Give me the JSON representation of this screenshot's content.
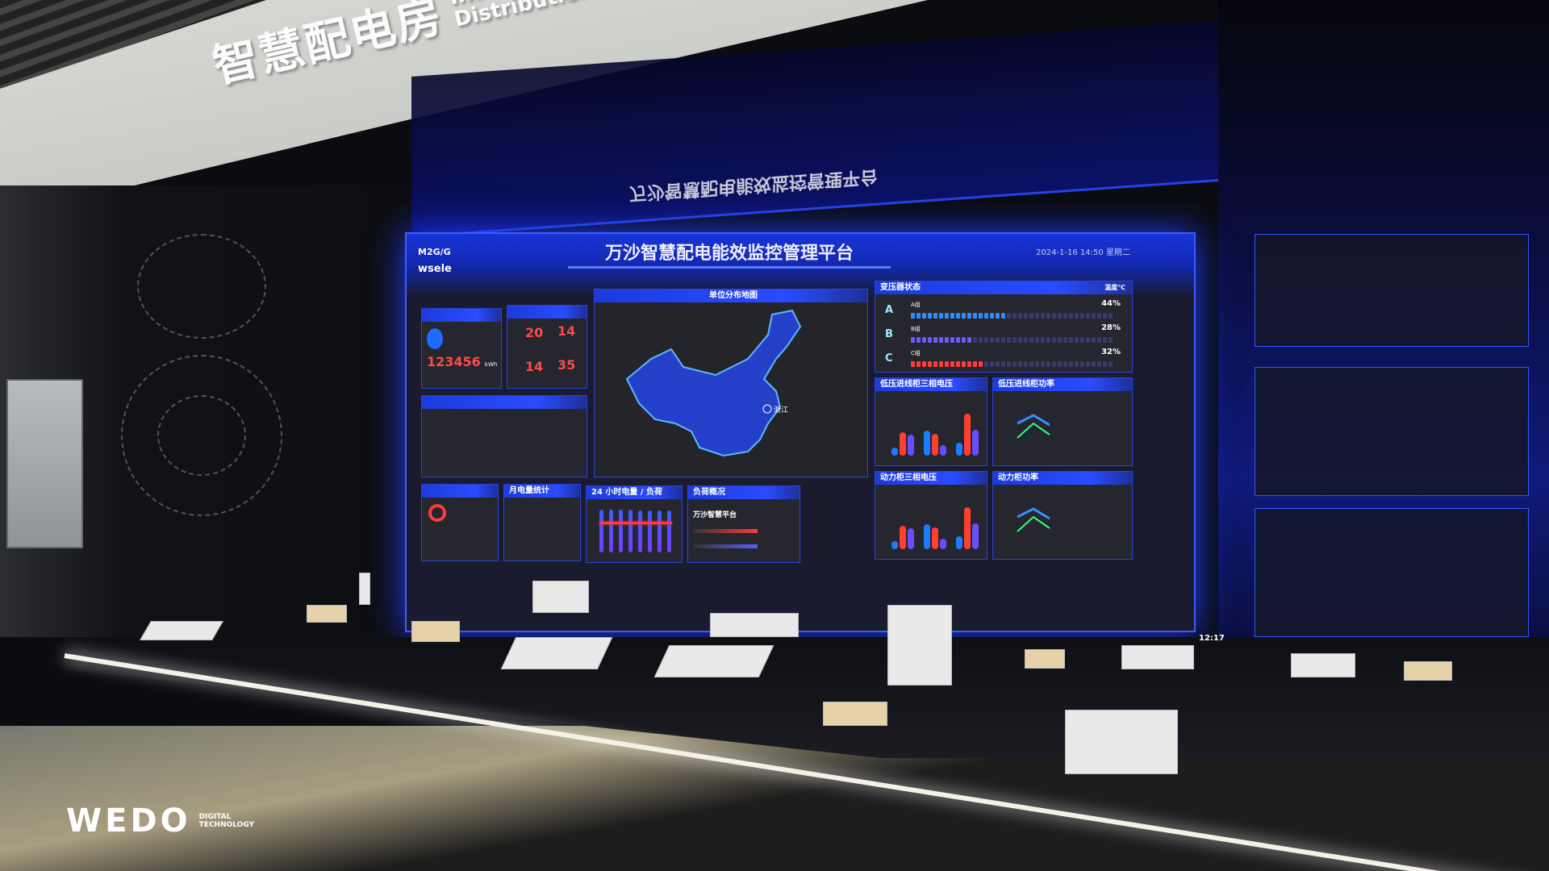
{
  "sign": {
    "cn": "智慧配电房",
    "en": "Intelligent Distribution Room"
  },
  "dashboard": {
    "title": "万沙智慧配电能效监控管理平台",
    "logos": [
      "M2G/G",
      "wsele"
    ],
    "datetime": "2024-1-16 14:50",
    "weekday": "星期二",
    "energy": {
      "value": "123456",
      "unit": "kWh"
    },
    "stats": [
      "20",
      "14",
      "14",
      "35"
    ],
    "map": {
      "title": "单位分布地图",
      "highlight": "浙江"
    },
    "transformer": {
      "title": "变压器状态",
      "unit": "温度℃",
      "groups": [
        {
          "letter": "A",
          "name": "A组",
          "pct": "44%",
          "level": 0.44,
          "color": "#2d8cff"
        },
        {
          "letter": "B",
          "name": "B组",
          "pct": "28%",
          "level": 0.28,
          "color": "#6a5cff"
        },
        {
          "letter": "C",
          "name": "C组",
          "pct": "32%",
          "level": 0.32,
          "color": "#ff3b3b"
        }
      ]
    },
    "panels": {
      "lv_voltage": "低压进线柜三相电压",
      "lv_power": "低压进线柜功率",
      "monthly": "月电量统计",
      "hourly": "24 小时电量 / 负荷",
      "load": "负荷概况",
      "load_name": "万沙智慧平台",
      "pw_voltage": "动力柜三相电压",
      "pw_power": "动力柜功率"
    },
    "voltage_bars": [
      [
        0.2,
        0.55,
        0.5
      ],
      [
        0.6,
        0.52,
        0.25
      ],
      [
        0.3,
        1.0,
        0.62
      ]
    ],
    "hourly_bars": [
      0.95,
      0.95,
      0.95,
      0.95,
      0.93,
      0.93,
      0.93,
      0.93
    ],
    "bottom_time": "12:17"
  },
  "brand": {
    "name": "WEDO",
    "tag1": "DIGITAL",
    "tag2": "TECHNOLOGY"
  },
  "colors": {
    "screen_blue": "#1a34d8",
    "red": "#ff3b3b",
    "blue": "#2d8cff",
    "purple": "#6a5cff"
  }
}
